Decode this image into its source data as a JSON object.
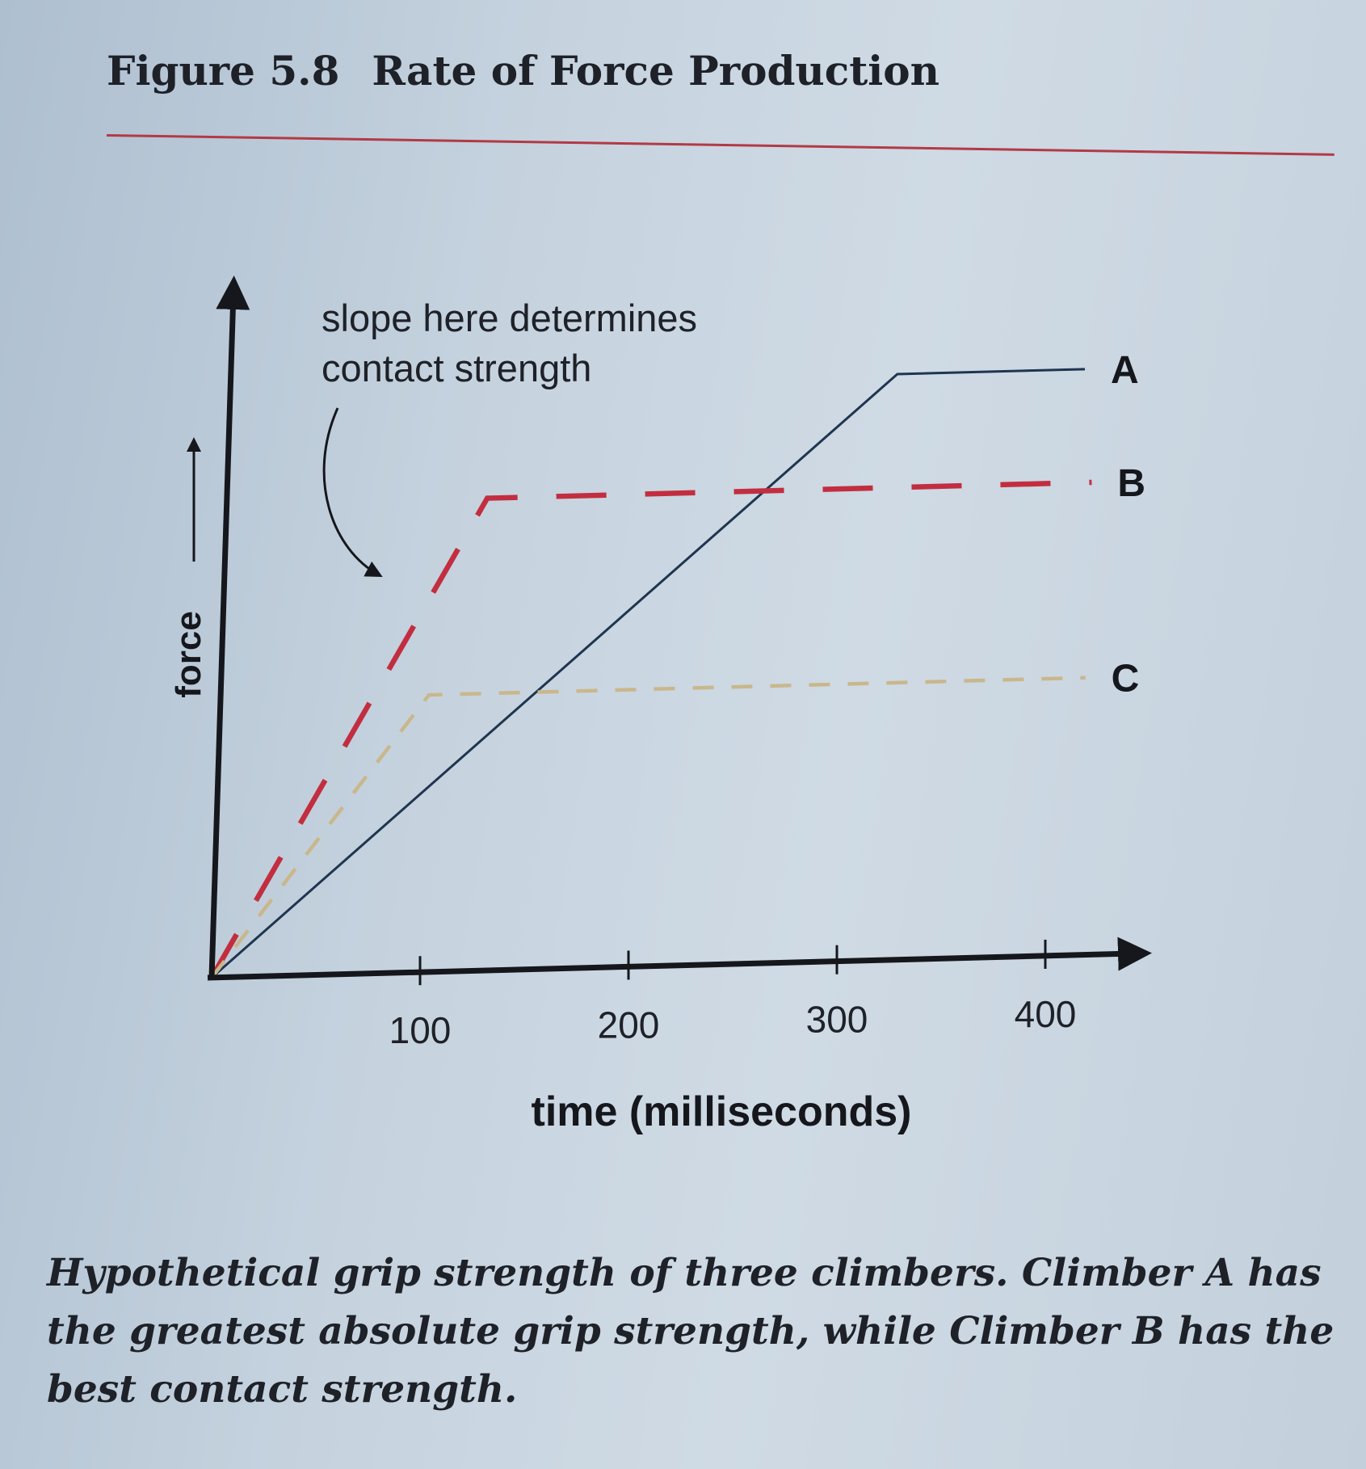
{
  "figure": {
    "number": "Figure 5.8",
    "title": "Rate of Force Production"
  },
  "caption": "Hypothetical grip strength of three climbers. Climber A has the greatest absolute grip strength, while Climber B has the best contact strength.",
  "annotation": {
    "line1": "slope here determines",
    "line2": "contact strength"
  },
  "colors": {
    "A": "#1f3550",
    "B": "#c22e3f",
    "C": "#c9b78c",
    "axis": "#15171c",
    "rule": "#b23a45"
  },
  "chart_data": {
    "type": "line",
    "title": "Rate of Force Production",
    "xlabel": "time (milliseconds)",
    "ylabel": "force",
    "xlim": [
      0,
      450
    ],
    "ylim": [
      0,
      100
    ],
    "xticks": [
      100,
      200,
      300,
      400
    ],
    "xtick_labels": [
      "100",
      "200",
      "300",
      "400"
    ],
    "yticks": [],
    "grid": false,
    "legend": "inline labels at right end of lines",
    "series": [
      {
        "name": "A",
        "style": "solid",
        "x": [
          0,
          320,
          410
        ],
        "y": [
          0,
          93,
          93
        ]
      },
      {
        "name": "B",
        "style": "dashed",
        "x": [
          0,
          125,
          415
        ],
        "y": [
          0,
          75,
          75
        ]
      },
      {
        "name": "C",
        "style": "dashed",
        "x": [
          0,
          100,
          415
        ],
        "y": [
          0,
          44,
          44
        ]
      }
    ]
  }
}
